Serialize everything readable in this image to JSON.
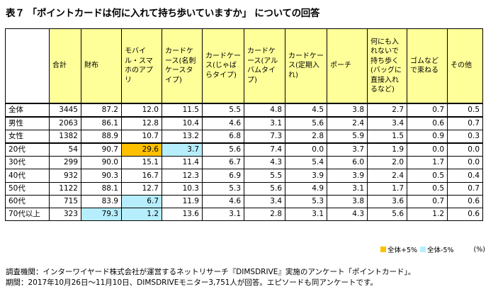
{
  "title": "表７ 「ポイントカードは何に入れて持ち歩いていますか」 についての回答",
  "table": {
    "columns": [
      "合計",
      "財布",
      "モバイル・スマホのアプリ",
      "カードケース(名刺ケースタイプ)",
      "カードケース(じゃばらタイプ)",
      "カードケース(アルバムタイプ)",
      "カードケース(定期入れ)",
      "ポーチ",
      "何にも入れないで持ち歩く(バッグに直接入れるなど)",
      "ゴムなどで束ねる",
      "その他"
    ],
    "rows": [
      {
        "label": "全体",
        "values": [
          "3445",
          "87.2",
          "12.0",
          "11.5",
          "5.5",
          "4.8",
          "4.5",
          "3.8",
          "2.7",
          "0.7",
          "0.5"
        ]
      },
      {
        "label": "男性",
        "values": [
          "2063",
          "86.1",
          "12.8",
          "10.4",
          "4.6",
          "3.1",
          "5.6",
          "2.4",
          "3.4",
          "0.6",
          "0.7"
        ]
      },
      {
        "label": "女性",
        "values": [
          "1382",
          "88.9",
          "10.7",
          "13.2",
          "6.8",
          "7.3",
          "2.8",
          "5.9",
          "1.5",
          "0.9",
          "0.3"
        ]
      },
      {
        "label": "20代",
        "values": [
          "54",
          "90.7",
          "29.6",
          "3.7",
          "5.6",
          "7.4",
          "0.0",
          "3.7",
          "1.9",
          "0.0",
          "0.0"
        ]
      },
      {
        "label": "30代",
        "values": [
          "299",
          "90.0",
          "15.1",
          "11.4",
          "6.7",
          "4.3",
          "5.4",
          "6.0",
          "2.0",
          "1.7",
          "0.0"
        ]
      },
      {
        "label": "40代",
        "values": [
          "932",
          "90.3",
          "16.7",
          "12.3",
          "6.9",
          "5.5",
          "3.9",
          "3.9",
          "2.4",
          "0.5",
          "0.4"
        ]
      },
      {
        "label": "50代",
        "values": [
          "1122",
          "88.1",
          "12.7",
          "10.3",
          "5.3",
          "5.6",
          "4.9",
          "3.1",
          "1.7",
          "0.5",
          "0.7"
        ]
      },
      {
        "label": "60代",
        "values": [
          "715",
          "83.9",
          "6.7",
          "11.9",
          "4.6",
          "3.4",
          "5.3",
          "3.8",
          "3.6",
          "0.7",
          "0.6"
        ]
      },
      {
        "label": "70代以上",
        "values": [
          "323",
          "79.3",
          "1.2",
          "13.6",
          "3.1",
          "2.8",
          "3.1",
          "4.3",
          "5.6",
          "1.2",
          "0.6"
        ]
      }
    ],
    "highlights_up": [
      [
        3,
        2
      ]
    ],
    "highlights_down": [
      [
        3,
        3
      ],
      [
        7,
        2
      ],
      [
        8,
        1
      ],
      [
        8,
        2
      ]
    ]
  },
  "legend": {
    "up_label": "全体+5%",
    "up_color": "#ffc000",
    "down_label": "全体-5%",
    "down_color": "#b7eefe",
    "unit": "(%)"
  },
  "footer": {
    "line1": "調査機関：インターワイヤード株式会社が運営するネットリサーチ『DIMSDRIVE』実施のアンケート「ポイントカード」。",
    "line2": "期間：2017年10月26日〜11月10日、DIMSDRIVEモニター3,751人が回答。エピソードも同アンケートです。"
  }
}
